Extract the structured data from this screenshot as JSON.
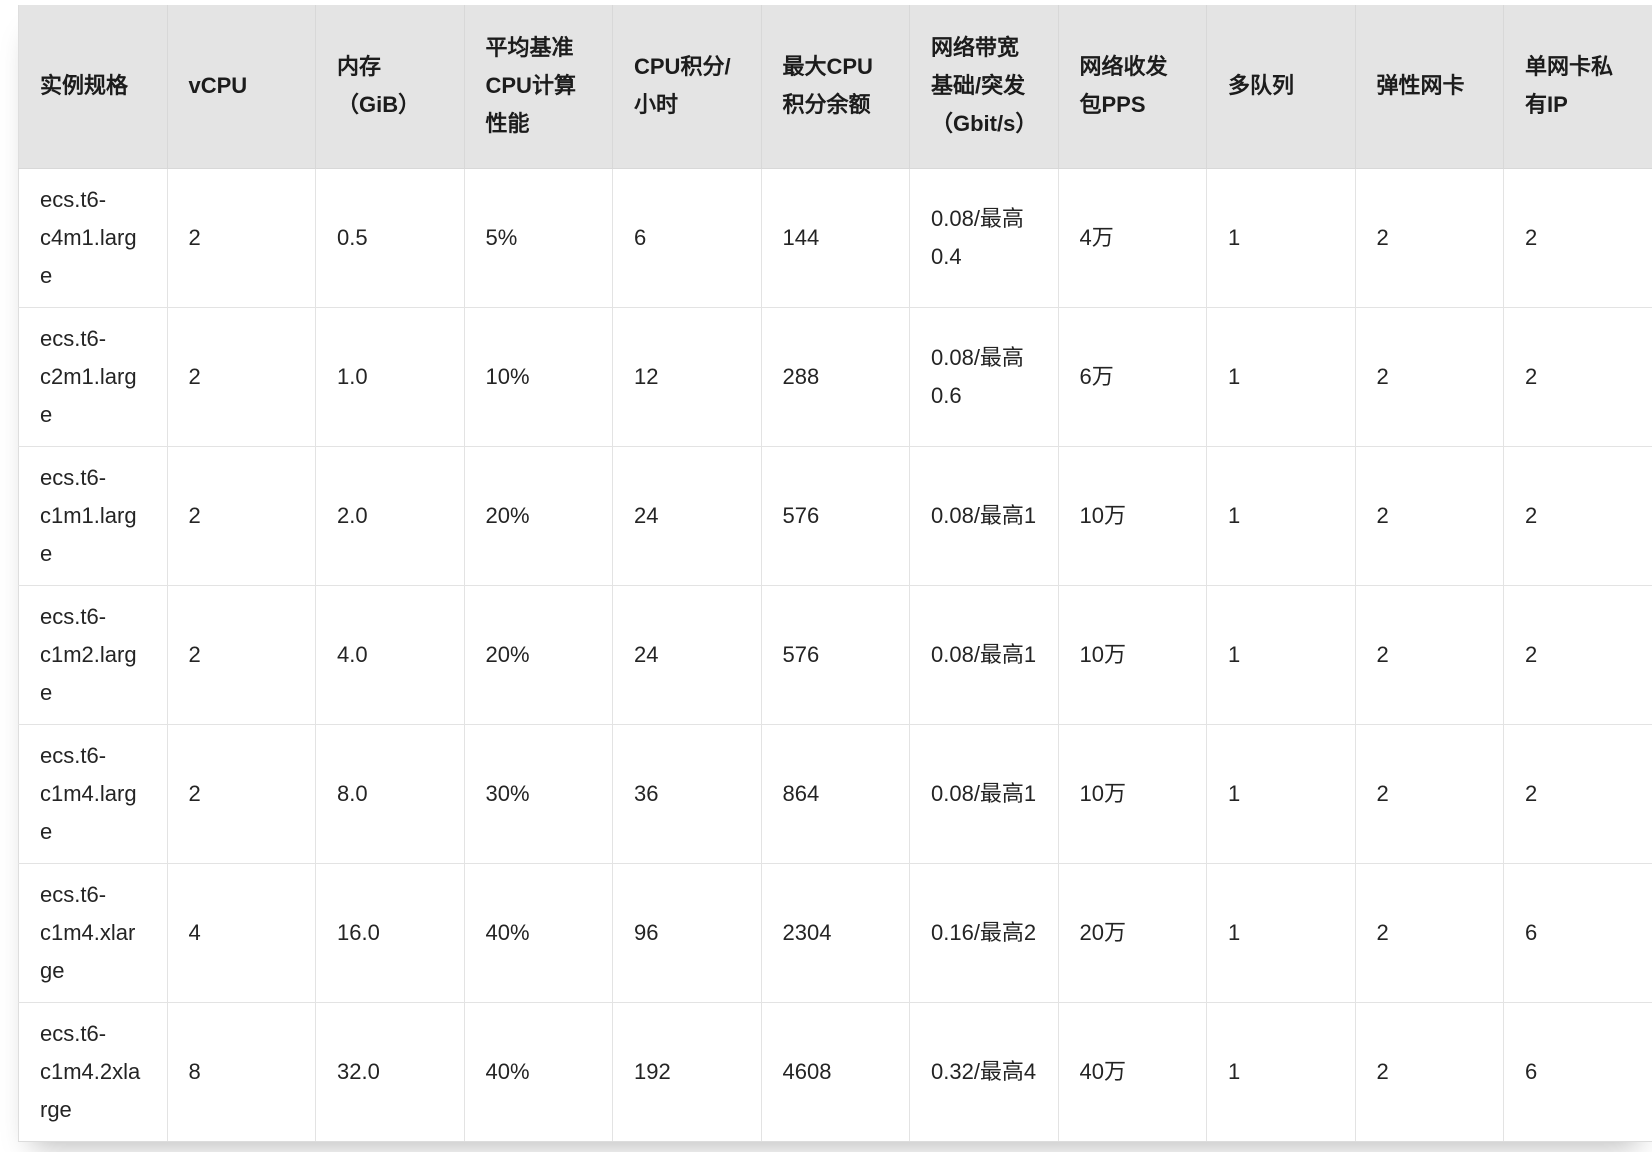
{
  "colors": {
    "page_background": "#ffffff",
    "header_background": "#e4e4e4",
    "header_border": "#d8d8d8",
    "body_border": "#e3e3e3",
    "header_text": "#1c1c1c",
    "body_text": "#242424"
  },
  "table": {
    "columns": [
      "实例规格",
      "vCPU",
      "内存（GiB）",
      "平均基准CPU计算性能",
      "CPU积分/小时",
      "最大CPU积分余额",
      "网络带宽基础/突发（Gbit/s）",
      "网络收发包PPS",
      "多队列",
      "弹性网卡",
      "单网卡私有IP"
    ],
    "rows": [
      [
        "ecs.t6-c4m1.large",
        "2",
        "0.5",
        "5%",
        "6",
        "144",
        "0.08/最高0.4",
        "4万",
        "1",
        "2",
        "2"
      ],
      [
        "ecs.t6-c2m1.large",
        "2",
        "1.0",
        "10%",
        "12",
        "288",
        "0.08/最高0.6",
        "6万",
        "1",
        "2",
        "2"
      ],
      [
        "ecs.t6-c1m1.large",
        "2",
        "2.0",
        "20%",
        "24",
        "576",
        "0.08/最高1",
        "10万",
        "1",
        "2",
        "2"
      ],
      [
        "ecs.t6-c1m2.large",
        "2",
        "4.0",
        "20%",
        "24",
        "576",
        "0.08/最高1",
        "10万",
        "1",
        "2",
        "2"
      ],
      [
        "ecs.t6-c1m4.large",
        "2",
        "8.0",
        "30%",
        "36",
        "864",
        "0.08/最高1",
        "10万",
        "1",
        "2",
        "2"
      ],
      [
        "ecs.t6-c1m4.xlarge",
        "4",
        "16.0",
        "40%",
        "96",
        "2304",
        "0.16/最高2",
        "20万",
        "1",
        "2",
        "6"
      ],
      [
        "ecs.t6-c1m4.2xlarge",
        "8",
        "32.0",
        "40%",
        "192",
        "4608",
        "0.32/最高4",
        "40万",
        "1",
        "2",
        "6"
      ]
    ]
  }
}
